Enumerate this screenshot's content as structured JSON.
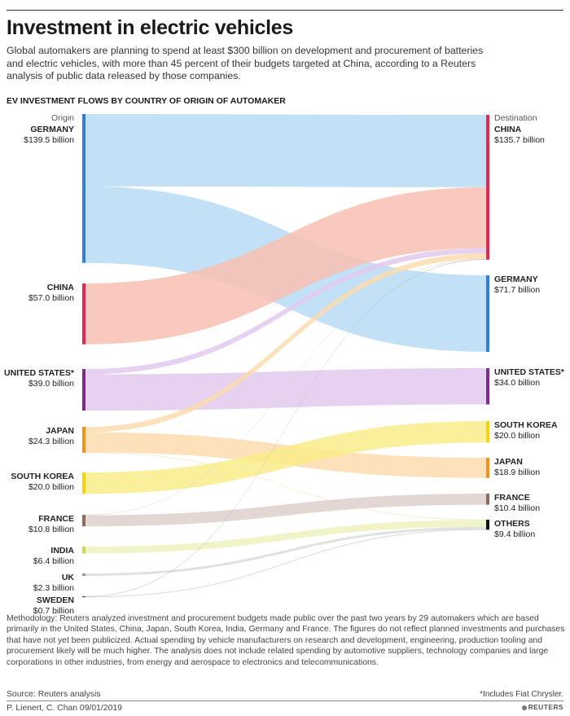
{
  "header": {
    "title": "Investment in electric vehicles",
    "subtitle": "Global automakers are planning to spend at least $300 billion on development and procurement of batteries and electric vehicles, with more than 45 percent of their budgets targeted at China, according to a Reuters analysis of public data released by those companies.",
    "section_label": "EV INVESTMENT FLOWS BY COUNTRY OF ORIGIN OF AUTOMAKER"
  },
  "chart_data": {
    "type": "sankey",
    "origin_header": "Origin",
    "destination_header": "Destination",
    "sources": [
      {
        "id": "germany",
        "label": "GERMANY",
        "value_label": "$139.5 billion",
        "value": 139.5,
        "color": "#2f7de1"
      },
      {
        "id": "china",
        "label": "CHINA",
        "value_label": "$57.0 billion",
        "value": 57.0,
        "color": "#e8264f"
      },
      {
        "id": "us",
        "label": "UNITED STATES*",
        "value_label": "$39.0 billion",
        "value": 39.0,
        "color": "#7b2d8e"
      },
      {
        "id": "japan",
        "label": "JAPAN",
        "value_label": "$24.3 billion",
        "value": 24.3,
        "color": "#f39419"
      },
      {
        "id": "korea",
        "label": "SOUTH KOREA",
        "value_label": "$20.0 billion",
        "value": 20.0,
        "color": "#f6d20f"
      },
      {
        "id": "france",
        "label": "FRANCE",
        "value_label": "$10.8 billion",
        "value": 10.8,
        "color": "#8c6b63"
      },
      {
        "id": "india",
        "label": "INDIA",
        "value_label": "$6.4 billion",
        "value": 6.4,
        "color": "#c8d94a"
      },
      {
        "id": "uk",
        "label": "UK",
        "value_label": "$2.3 billion",
        "value": 2.3,
        "color": "#9a9a9a"
      },
      {
        "id": "sweden",
        "label": "SWEDEN",
        "value_label": "$0.7 billion",
        "value": 0.7,
        "color": "#444444"
      }
    ],
    "targets": [
      {
        "id": "china",
        "label": "CHINA",
        "value_label": "$135.7 billion",
        "value": 135.7,
        "color": "#e8264f"
      },
      {
        "id": "germany",
        "label": "GERMANY",
        "value_label": "$71.7 billion",
        "value": 71.7,
        "color": "#2f7de1"
      },
      {
        "id": "us",
        "label": "UNITED STATES*",
        "value_label": "$34.0 billion",
        "value": 34.0,
        "color": "#7b2d8e"
      },
      {
        "id": "korea",
        "label": "SOUTH KOREA",
        "value_label": "$20.0 billion",
        "value": 20.0,
        "color": "#f6d20f"
      },
      {
        "id": "japan",
        "label": "JAPAN",
        "value_label": "$18.9 billion",
        "value": 18.9,
        "color": "#f39419"
      },
      {
        "id": "france",
        "label": "FRANCE",
        "value_label": "$10.4 billion",
        "value": 10.4,
        "color": "#8c6b63"
      },
      {
        "id": "others",
        "label": "OTHERS",
        "value_label": "$9.4 billion",
        "value": 9.4,
        "color": "#111111"
      }
    ],
    "flows": [
      {
        "source": "germany",
        "target": "china",
        "value": 67.8,
        "color": "#b9dcf5"
      },
      {
        "source": "germany",
        "target": "germany",
        "value": 71.7,
        "color": "#b9dcf5"
      },
      {
        "source": "china",
        "target": "china",
        "value": 57.0,
        "color": "#f8c0b2"
      },
      {
        "source": "us",
        "target": "china",
        "value": 5.0,
        "color": "#e2c9ee"
      },
      {
        "source": "us",
        "target": "us",
        "value": 34.0,
        "color": "#e2c9ee"
      },
      {
        "source": "japan",
        "target": "china",
        "value": 5.1,
        "color": "#fbdcae"
      },
      {
        "source": "japan",
        "target": "japan",
        "value": 18.9,
        "color": "#fbdcae"
      },
      {
        "source": "japan",
        "target": "others",
        "value": 0.3,
        "color": "#fbdcae"
      },
      {
        "source": "korea",
        "target": "korea",
        "value": 20.0,
        "color": "#f9ec8a"
      },
      {
        "source": "france",
        "target": "china",
        "value": 0.4,
        "color": "#ddd0cb"
      },
      {
        "source": "france",
        "target": "france",
        "value": 10.4,
        "color": "#ddd0cb"
      },
      {
        "source": "india",
        "target": "others",
        "value": 6.4,
        "color": "#eef2bf"
      },
      {
        "source": "uk",
        "target": "others",
        "value": 2.3,
        "color": "#dcdcdc"
      },
      {
        "source": "sweden",
        "target": "china",
        "value": 0.4,
        "color": "#bbbbbb"
      },
      {
        "source": "sweden",
        "target": "others",
        "value": 0.3,
        "color": "#bbbbbb"
      }
    ]
  },
  "footer": {
    "methodology": "Methodology: Reuters analyzed investment and procurement budgets made public over the past two years by 29 automakers which are based primarily in the United States, China, Japan, South Korea, India, Germany and France. The figures do not reflect planned investments and purchases that have not yet been publicized. Actual spending by vehicle manufacturers on research and development, engineering, production tooling and procurement likely will be much higher. The analysis does not include related spending by automotive suppliers, technology companies and large corporations in other industries, from energy and aerospace to electronics and telecommunications.",
    "source": "Source: Reuters analysis",
    "credit": "P. Lienert, C. Chan 09/01/2019",
    "footnote": "*Includes Fiat Chrysler.",
    "logo_text": "REUTERS"
  }
}
